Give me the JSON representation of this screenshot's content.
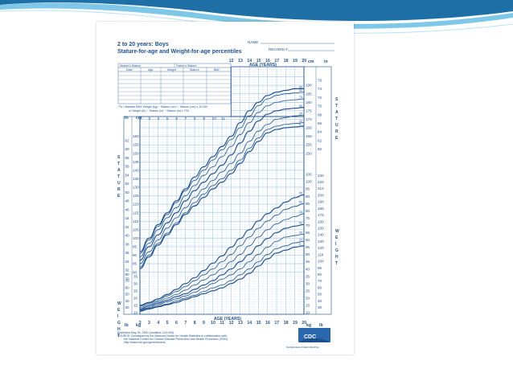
{
  "colors": {
    "ink": "#1c4f8c",
    "grid": "#8fb5d8",
    "grid_light": "#c9dcef",
    "swoosh_dark": "#1d6fa5",
    "swoosh_light": "#7ec7e6",
    "cdc": "#1c4f8c"
  },
  "header": {
    "title": "2 to 20 years: Boys",
    "subtitle": "Stature-for-age and Weight-for-age percentiles",
    "name_label": "NAME",
    "record_label": "RECORD #"
  },
  "table": {
    "top_headers": [
      "Mother's Stature",
      "Father's Stature"
    ],
    "columns": [
      "Date",
      "Age",
      "Weight",
      "Stature",
      "BMI*"
    ]
  },
  "bmi_note": [
    "*To Calculate BMI: Weight (kg) ÷ Stature (cm) ÷ Stature (cm) x 10,000",
    "or Weight (lb) ÷ Stature (in) ÷ Stature (in) x 703"
  ],
  "axes": {
    "age_label": "AGE (YEARS)",
    "stature_word": "STATURE",
    "weight_word": "WEIGHT",
    "unit_in": "in",
    "unit_cm": "cm",
    "unit_lb": "lb",
    "unit_kg": "kg"
  },
  "footer": {
    "lines": [
      "Published May 30, 2000 (modified 11/21/00).",
      "SOURCE: Developed by the National Center for Health Statistics in collaboration with",
      "the National Center for Chronic Disease Prevention and Health Promotion (2000).",
      "http://www.cdc.gov/growthcharts"
    ],
    "logo_text": "CDC",
    "tagline": "SAFER·HEALTHIER·PEOPLE"
  },
  "chart_data": {
    "type": "line",
    "title": "2 to 20 years: Boys",
    "subtitle": "Stature-for-age and Weight-for-age percentiles",
    "xlabel": "AGE (YEARS)",
    "x": [
      2,
      3,
      4,
      5,
      6,
      7,
      8,
      9,
      10,
      11,
      12,
      13,
      14,
      15,
      16,
      17,
      18,
      19,
      20
    ],
    "xlim": [
      2,
      20
    ],
    "grid": true,
    "stature": {
      "ylabel": "STATURE",
      "unit": "cm",
      "ylim_cm": [
        77,
        200
      ],
      "ylim_in": [
        30,
        78
      ],
      "percentile_labels": [
        "5",
        "10",
        "25",
        "50",
        "75",
        "90",
        "95"
      ],
      "series": [
        {
          "name": "5",
          "values": [
            82,
            89,
            96,
            102,
            108,
            114,
            119,
            124,
            129,
            133,
            138,
            144,
            151,
            157,
            162,
            164,
            165,
            165.5,
            166
          ]
        },
        {
          "name": "10",
          "values": [
            83,
            90,
            97,
            103,
            109,
            115,
            121,
            126,
            131,
            135,
            140,
            146,
            153,
            159,
            164,
            166,
            167,
            167.5,
            168
          ]
        },
        {
          "name": "25",
          "values": [
            85,
            92,
            99,
            106,
            112,
            118,
            124,
            129,
            134,
            139,
            144,
            150,
            157,
            163,
            167,
            170,
            171,
            172,
            172.5
          ]
        },
        {
          "name": "50",
          "values": [
            87,
            95,
            102,
            109,
            115,
            122,
            128,
            133,
            138,
            143,
            149,
            156,
            163,
            169,
            173,
            175,
            176,
            176.5,
            177
          ]
        },
        {
          "name": "75",
          "values": [
            89,
            97,
            105,
            112,
            118,
            125,
            131,
            137,
            142,
            148,
            154,
            161,
            168,
            174,
            178,
            180,
            181,
            181.5,
            182
          ]
        },
        {
          "name": "90",
          "values": [
            91,
            99,
            107,
            114,
            121,
            128,
            134,
            140,
            146,
            152,
            158,
            165,
            172,
            178,
            182,
            184,
            185,
            185.5,
            186
          ]
        },
        {
          "name": "95",
          "values": [
            92,
            100,
            108,
            115,
            122,
            129,
            136,
            142,
            148,
            154,
            160,
            168,
            175,
            180,
            184,
            186,
            187,
            188,
            188
          ]
        }
      ]
    },
    "weight": {
      "ylabel": "WEIGHT",
      "unit": "kg",
      "ylim_kg": [
        10,
        105
      ],
      "ylim_lb": [
        30,
        230
      ],
      "percentile_labels": [
        "5",
        "10",
        "25",
        "50",
        "75",
        "90",
        "95"
      ],
      "series": [
        {
          "name": "5",
          "values": [
            11,
            12.5,
            14,
            15.5,
            17,
            19,
            21,
            23,
            25,
            27,
            30,
            33,
            37,
            42,
            47,
            51,
            53,
            55,
            56
          ]
        },
        {
          "name": "10",
          "values": [
            11.5,
            13,
            14.5,
            16,
            18,
            20,
            22,
            24.5,
            27,
            29,
            32,
            36,
            40,
            45,
            50,
            54,
            56,
            58,
            59
          ]
        },
        {
          "name": "25",
          "values": [
            12,
            13.5,
            15.5,
            17.5,
            19.5,
            21.5,
            24,
            27,
            30,
            33,
            36,
            40,
            45,
            50,
            55,
            59,
            62,
            63,
            64
          ]
        },
        {
          "name": "50",
          "values": [
            12.5,
            14.5,
            16.5,
            18.5,
            21,
            23,
            26,
            29,
            32,
            36,
            40,
            45,
            50,
            56,
            61,
            65,
            68,
            69.5,
            70.5
          ]
        },
        {
          "name": "75",
          "values": [
            13.5,
            15.5,
            17.5,
            20,
            22.5,
            25.5,
            29,
            32.5,
            36,
            40,
            45,
            50,
            56,
            62,
            67,
            71,
            74,
            76,
            78
          ]
        },
        {
          "name": "90",
          "values": [
            14.5,
            16.5,
            18.5,
            21.5,
            24.5,
            28,
            32,
            36,
            40,
            45,
            50,
            56,
            62,
            68,
            73,
            77,
            81,
            83,
            85
          ]
        },
        {
          "name": "95",
          "values": [
            15,
            17,
            19.5,
            22.5,
            26,
            30,
            34,
            39,
            44,
            49,
            55,
            61,
            67,
            73,
            78,
            82,
            86,
            89,
            91
          ]
        }
      ]
    }
  }
}
